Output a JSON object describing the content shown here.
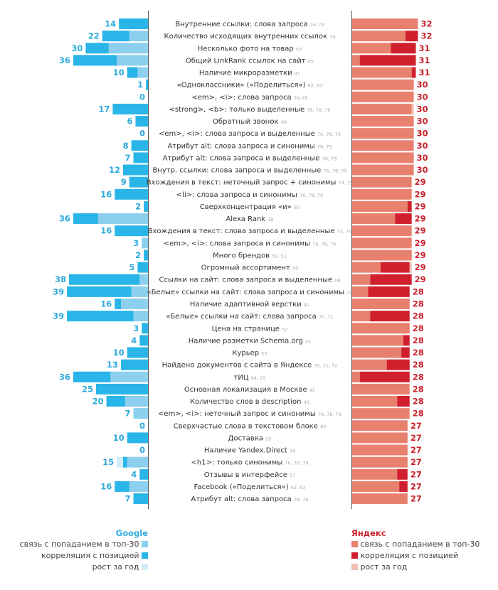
{
  "chart_data": {
    "type": "bar",
    "layout": "back-to-back horizontal stacked bars",
    "colors": {
      "google_top30": "#8ccfee",
      "google_corr": "#29b5e8",
      "google_growth": "#d4ecf8",
      "yandex_top30": "#e8806e",
      "yandex_corr": "#d0202e",
      "yandex_growth": "#f2c0b5",
      "google_text": "#2eaadc",
      "yandex_text": "#c8232f"
    },
    "google": {
      "title": "Google",
      "legend": [
        "связь с попаданием в топ-30",
        "корреляция с позицией",
        "рост за год"
      ]
    },
    "yandex": {
      "title": "Яндекс",
      "legend": [
        "связь с попаданием в топ-30",
        "корреляция с позицией",
        "рост за год"
      ]
    },
    "rows": [
      {
        "label": "Внутренние ссылки: слова запроса",
        "ref": "76–79",
        "g": 14,
        "g_corr": 14,
        "g_top": 0,
        "g_grow": 0,
        "y": 32,
        "y_top": 32,
        "y_corr": 0,
        "y_grow": 0
      },
      {
        "label": "Количество исходящих внутренних ссылок",
        "ref": "39",
        "g": 22,
        "g_corr": 13,
        "g_top": 9,
        "g_grow": 0,
        "y": 32,
        "y_top": 26,
        "y_corr": 6,
        "y_grow": 0
      },
      {
        "label": "Несколько фото на товар",
        "ref": "53",
        "g": 30,
        "g_corr": 11,
        "g_top": 19,
        "g_grow": 0,
        "y": 31,
        "y_top": 19,
        "y_corr": 12,
        "y_grow": 0
      },
      {
        "label": "Общий LinkRank ссылок на сайт",
        "ref": "65",
        "g": 36,
        "g_corr": 21,
        "g_top": 15,
        "g_grow": 0,
        "y": 31,
        "y_top": 4,
        "y_corr": 27,
        "y_grow": 0
      },
      {
        "label": "Наличие микроразметки",
        "ref": "41",
        "g": 10,
        "g_corr": 5,
        "g_top": 5,
        "g_grow": 0,
        "y": 31,
        "y_top": 29,
        "y_corr": 2,
        "y_grow": 0
      },
      {
        "label": "«Одноклассники» («Поделиться»)",
        "ref": "62, 63",
        "g": 1,
        "g_corr": 1,
        "g_top": 0,
        "g_grow": 0,
        "y": 30,
        "y_top": 30,
        "y_corr": 0,
        "y_grow": 0
      },
      {
        "label": "<em>, <i>: слова запроса",
        "ref": "76–79",
        "g": 0,
        "g_corr": 0,
        "g_top": 0,
        "g_grow": 0,
        "y": 30,
        "y_top": 30,
        "y_corr": 0,
        "y_grow": 0
      },
      {
        "label": "<strong>, <b>: только выделенные",
        "ref": "76, 78, 79",
        "g": 17,
        "g_corr": 17,
        "g_top": 0,
        "g_grow": 0,
        "y": 30,
        "y_top": 29,
        "y_corr": 0,
        "y_grow": 1
      },
      {
        "label": "Обратный звонок",
        "ref": "49",
        "g": 6,
        "g_corr": 6,
        "g_top": 0,
        "g_grow": 0,
        "y": 30,
        "y_top": 30,
        "y_corr": 0,
        "y_grow": 0
      },
      {
        "label": "<em>, <i>: слова запроса и выделенные",
        "ref": "76, 78, 79",
        "g": 0,
        "g_corr": 0,
        "g_top": 0,
        "g_grow": 0,
        "y": 30,
        "y_top": 30,
        "y_corr": 0,
        "y_grow": 0
      },
      {
        "label": "Атрибут alt: слова запроса и синонимы",
        "ref": "78, 79",
        "g": 8,
        "g_corr": 8,
        "g_top": 0,
        "g_grow": 0,
        "y": 30,
        "y_top": 30,
        "y_corr": 0,
        "y_grow": 0
      },
      {
        "label": "Атрибут alt: слова запроса и выделенные",
        "ref": "78, 79",
        "g": 7,
        "g_corr": 7,
        "g_top": 0,
        "g_grow": 0,
        "y": 30,
        "y_top": 30,
        "y_corr": 0,
        "y_grow": 0
      },
      {
        "label": "Внутр. ссылки: слова запроса и выделенные",
        "ref": "76, 78, 79",
        "g": 12,
        "g_corr": 12,
        "g_top": 0,
        "g_grow": 0,
        "y": 30,
        "y_top": 30,
        "y_corr": 0,
        "y_grow": 0
      },
      {
        "label": "Вхождения в текст: неточный запрос + синонимы",
        "ref": "74, 75",
        "g": 9,
        "g_corr": 9,
        "g_top": 0,
        "g_grow": 0,
        "y": 29,
        "y_top": 29,
        "y_corr": 0,
        "y_grow": 0
      },
      {
        "label": "<li>: слова запроса и синонимы",
        "ref": "76, 78, 79",
        "g": 16,
        "g_corr": 16,
        "g_top": 0,
        "g_grow": 0,
        "y": 29,
        "y_top": 29,
        "y_corr": 0,
        "y_grow": 0
      },
      {
        "label": "Сверхконцентрация «и»",
        "ref": "80",
        "g": 2,
        "g_corr": 2,
        "g_top": 0,
        "g_grow": 0,
        "y": 29,
        "y_top": 27,
        "y_corr": 2,
        "y_grow": 0
      },
      {
        "label": "Alexa Rank",
        "ref": "18",
        "g": 36,
        "g_corr": 12,
        "g_top": 24,
        "g_grow": 0,
        "y": 29,
        "y_top": 21,
        "y_corr": 8,
        "y_grow": 0
      },
      {
        "label": "Вхождения в текст: слова запроса и выделенные",
        "ref": "74, 75",
        "g": 16,
        "g_corr": 16,
        "g_top": 0,
        "g_grow": 0,
        "y": 29,
        "y_top": 29,
        "y_corr": 0,
        "y_grow": 0
      },
      {
        "label": "<em>, <i>: слова запроса и синонимы",
        "ref": "76, 78, 79",
        "g": 3,
        "g_corr": 0,
        "g_top": 3,
        "g_grow": 0,
        "y": 29,
        "y_top": 29,
        "y_corr": 0,
        "y_grow": 0
      },
      {
        "label": "Много брендов",
        "ref": "50, 51",
        "g": 2,
        "g_corr": 2,
        "g_top": 0,
        "g_grow": 0,
        "y": 29,
        "y_top": 29,
        "y_corr": 0,
        "y_grow": 0
      },
      {
        "label": "Огромный ассортимент",
        "ref": "50",
        "g": 5,
        "g_corr": 5,
        "g_top": 0,
        "g_grow": 0,
        "y": 29,
        "y_top": 14,
        "y_corr": 14,
        "y_grow": 1
      },
      {
        "label": "Ссылки на сайт: слова запроса и выделенные",
        "ref": "68",
        "g": 38,
        "g_corr": 34,
        "g_top": 4,
        "g_grow": 0,
        "y": 29,
        "y_top": 9,
        "y_corr": 20,
        "y_grow": 0
      },
      {
        "label": "«Белые» ссылки на сайт: слова запроса и синонимы",
        "ref": "70",
        "g": 39,
        "g_corr": 31,
        "g_top": 8,
        "g_grow": 0,
        "y": 28,
        "y_top": 8,
        "y_corr": 20,
        "y_grow": 0
      },
      {
        "label": "Наличие адаптивной верстки",
        "ref": "41",
        "g": 16,
        "g_corr": 3,
        "g_top": 13,
        "g_grow": 0,
        "y": 28,
        "y_top": 28,
        "y_corr": 0,
        "y_grow": 0
      },
      {
        "label": "«Белые» ссылки на сайт: слова запроса",
        "ref": "70, 71",
        "g": 39,
        "g_corr": 32,
        "g_top": 7,
        "g_grow": 0,
        "y": 28,
        "y_top": 9,
        "y_corr": 19,
        "y_grow": 0
      },
      {
        "label": "Цена на странице",
        "ref": "52",
        "g": 3,
        "g_corr": 3,
        "g_top": 0,
        "g_grow": 0,
        "y": 28,
        "y_top": 28,
        "y_corr": 0,
        "y_grow": 0
      },
      {
        "label": "Наличие разметки Schema.org",
        "ref": "41",
        "g": 4,
        "g_corr": 4,
        "g_top": 0,
        "g_grow": 0,
        "y": 28,
        "y_top": 25,
        "y_corr": 3,
        "y_grow": 0
      },
      {
        "label": "Курьер",
        "ref": "55",
        "g": 10,
        "g_corr": 10,
        "g_top": 0,
        "g_grow": 0,
        "y": 28,
        "y_top": 24,
        "y_corr": 4,
        "y_grow": 0
      },
      {
        "label": "Найдено документов с сайта в Яндексе",
        "ref": "30, 31, 72",
        "g": 13,
        "g_corr": 13,
        "g_top": 0,
        "g_grow": 0,
        "y": 28,
        "y_top": 17,
        "y_corr": 11,
        "y_grow": 0
      },
      {
        "label": "тИЦ",
        "ref": "64, 25",
        "g": 36,
        "g_corr": 18,
        "g_top": 18,
        "g_grow": 0,
        "y": 28,
        "y_top": 4,
        "y_corr": 24,
        "y_grow": 0
      },
      {
        "label": "Основная локализация в Москве",
        "ref": "45",
        "g": 25,
        "g_corr": 25,
        "g_top": 0,
        "g_grow": 0,
        "y": 28,
        "y_top": 28,
        "y_corr": 0,
        "y_grow": 0
      },
      {
        "label": "Количество слов в description",
        "ref": "43",
        "g": 20,
        "g_corr": 9,
        "g_top": 11,
        "g_grow": 0,
        "y": 28,
        "y_top": 22,
        "y_corr": 6,
        "y_grow": 0
      },
      {
        "label": "<em>, <i>: неточный запрос и синонимы",
        "ref": "76, 78, 79",
        "g": 7,
        "g_corr": 0,
        "g_top": 7,
        "g_grow": 0,
        "y": 28,
        "y_top": 28,
        "y_corr": 0,
        "y_grow": 0
      },
      {
        "label": "Сверхчастые слова в текстовом блоке",
        "ref": "80",
        "g": 0,
        "g_corr": 0,
        "g_top": 0,
        "g_grow": 0,
        "y": 27,
        "y_top": 27,
        "y_corr": 0,
        "y_grow": 0
      },
      {
        "label": "Доставка",
        "ref": "55",
        "g": 10,
        "g_corr": 10,
        "g_top": 0,
        "g_grow": 0,
        "y": 27,
        "y_top": 27,
        "y_corr": 0,
        "y_grow": 0
      },
      {
        "label": "Наличие Yandex.Direct",
        "ref": "34",
        "g": 0,
        "g_corr": 0,
        "g_top": 0,
        "g_grow": 0,
        "y": 27,
        "y_top": 27,
        "y_corr": 0,
        "y_grow": 0
      },
      {
        "label": "<h1>: только синонимы",
        "ref": "76, 78, 79",
        "g": 15,
        "g_corr": 2,
        "g_top": 10,
        "g_grow": 3,
        "y": 27,
        "y_top": 27,
        "y_corr": 0,
        "y_grow": 0
      },
      {
        "label": "Отзывы в интерфейсе",
        "ref": "57",
        "g": 4,
        "g_corr": 4,
        "g_top": 0,
        "g_grow": 0,
        "y": 27,
        "y_top": 22,
        "y_corr": 5,
        "y_grow": 0
      },
      {
        "label": "Facebook («Поделиться»)",
        "ref": "62, 63",
        "g": 16,
        "g_corr": 7,
        "g_top": 9,
        "g_grow": 0,
        "y": 27,
        "y_top": 23,
        "y_corr": 4,
        "y_grow": 0
      },
      {
        "label": "Атрибут alt: слова запроса",
        "ref": "78, 79",
        "g": 7,
        "g_corr": 7,
        "g_top": 0,
        "g_grow": 0,
        "y": 27,
        "y_top": 27,
        "y_corr": 0,
        "y_grow": 0
      }
    ]
  }
}
